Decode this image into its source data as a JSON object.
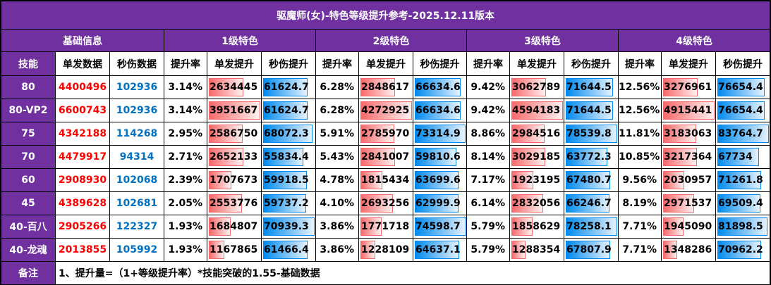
{
  "title": "驱魔师(女)-特色等级提升参考-2025.12.11版本",
  "groups": {
    "base": "基础信息",
    "lv1": "1级特色",
    "lv2": "2级特色",
    "lv3": "3级特色",
    "lv4": "4级特色"
  },
  "subheaders": {
    "skill": "技能",
    "single": "单发数据",
    "dps": "秒伤数据",
    "rate": "提升率",
    "single_up": "单发提升",
    "dps_up": "秒伤提升"
  },
  "colors": {
    "header_purple": "#7030A0",
    "single_text": "#FF0000",
    "dps_text": "#0070C0",
    "red_bar": "#F8696B",
    "blue_bar": "#008AEF"
  },
  "rows": [
    {
      "skill": "80",
      "single": "4400496",
      "dps": "102936",
      "l1": {
        "rate": "3.14%",
        "single": "2634445",
        "dps": "61624.7"
      },
      "l2": {
        "rate": "6.28%",
        "single": "2848617",
        "dps": "66634.6"
      },
      "l3": {
        "rate": "9.42%",
        "single": "3062789",
        "dps": "71644.5"
      },
      "l4": {
        "rate": "12.56%",
        "single": "3276961",
        "dps": "76654.4"
      }
    },
    {
      "skill": "80-VP2",
      "single": "6600743",
      "dps": "102936",
      "l1": {
        "rate": "3.14%",
        "single": "3951667",
        "dps": "61624.7"
      },
      "l2": {
        "rate": "6.28%",
        "single": "4272925",
        "dps": "66634.6"
      },
      "l3": {
        "rate": "9.42%",
        "single": "4594183",
        "dps": "71644.5"
      },
      "l4": {
        "rate": "12.56%",
        "single": "4915441",
        "dps": "76654.4"
      }
    },
    {
      "skill": "75",
      "single": "4342188",
      "dps": "114268",
      "l1": {
        "rate": "2.95%",
        "single": "2586750",
        "dps": "68072.3"
      },
      "l2": {
        "rate": "5.91%",
        "single": "2785970",
        "dps": "73314.9"
      },
      "l3": {
        "rate": "8.86%",
        "single": "2984516",
        "dps": "78539.8"
      },
      "l4": {
        "rate": "11.81%",
        "single": "3183063",
        "dps": "83764.7"
      }
    },
    {
      "skill": "70",
      "single": "4479917",
      "dps": "94314",
      "l1": {
        "rate": "2.71%",
        "single": "2652133",
        "dps": "55834.4"
      },
      "l2": {
        "rate": "5.43%",
        "single": "2841007",
        "dps": "59810.6"
      },
      "l3": {
        "rate": "8.14%",
        "single": "3029185",
        "dps": "63772.3"
      },
      "l4": {
        "rate": "10.85%",
        "single": "3217364",
        "dps": "67734"
      }
    },
    {
      "skill": "60",
      "single": "2908930",
      "dps": "102068",
      "l1": {
        "rate": "2.39%",
        "single": "1707673",
        "dps": "59918.5"
      },
      "l2": {
        "rate": "4.78%",
        "single": "1815434",
        "dps": "63699.6"
      },
      "l3": {
        "rate": "7.17%",
        "single": "1923195",
        "dps": "67480.7"
      },
      "l4": {
        "rate": "9.56%",
        "single": "2030957",
        "dps": "71261.8"
      }
    },
    {
      "skill": "45",
      "single": "4389628",
      "dps": "102681",
      "l1": {
        "rate": "2.05%",
        "single": "2553776",
        "dps": "59737.2"
      },
      "l2": {
        "rate": "4.10%",
        "single": "2693256",
        "dps": "62999.9"
      },
      "l3": {
        "rate": "6.14%",
        "single": "2832056",
        "dps": "66246.7"
      },
      "l4": {
        "rate": "8.19%",
        "single": "2971537",
        "dps": "69509.4"
      }
    },
    {
      "skill": "40-百八",
      "single": "2905266",
      "dps": "122327",
      "l1": {
        "rate": "1.93%",
        "single": "1684807",
        "dps": "70939.3"
      },
      "l2": {
        "rate": "3.86%",
        "single": "1771718",
        "dps": "74598.7"
      },
      "l3": {
        "rate": "5.79%",
        "single": "1858629",
        "dps": "78258.1"
      },
      "l4": {
        "rate": "7.71%",
        "single": "1945090",
        "dps": "81898.5"
      }
    },
    {
      "skill": "40-龙魂",
      "single": "2013855",
      "dps": "105992",
      "l1": {
        "rate": "1.93%",
        "single": "1167865",
        "dps": "61466.4"
      },
      "l2": {
        "rate": "3.86%",
        "single": "1228109",
        "dps": "64637.1"
      },
      "l3": {
        "rate": "5.79%",
        "single": "1288354",
        "dps": "67807.9"
      },
      "l4": {
        "rate": "7.71%",
        "single": "1348286",
        "dps": "70962.2"
      }
    }
  ],
  "remark": {
    "label": "备注",
    "text": "1、提升量=（1+等级提升率）*技能突破的1.55-基础数据"
  }
}
